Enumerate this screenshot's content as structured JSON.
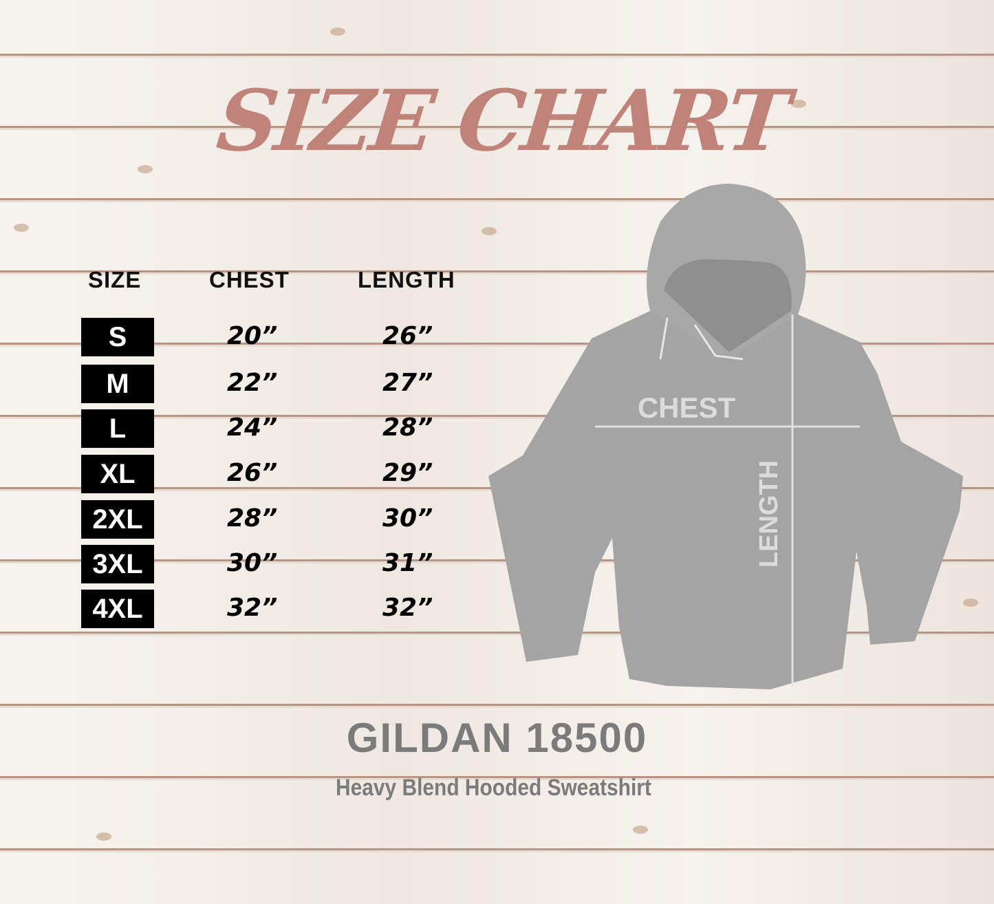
{
  "title": "SIZE CHART",
  "columns": [
    "SIZE",
    "CHEST",
    "LENGTH"
  ],
  "rows": [
    {
      "size": "S",
      "chest": "20”",
      "length": "26”"
    },
    {
      "size": "M",
      "chest": "22”",
      "length": "27”"
    },
    {
      "size": "L",
      "chest": "24”",
      "length": "28”"
    },
    {
      "size": "XL",
      "chest": "26”",
      "length": "29”"
    },
    {
      "size": "2XL",
      "chest": "28”",
      "length": "30”"
    },
    {
      "size": "3XL",
      "chest": "30”",
      "length": "31”"
    },
    {
      "size": "4XL",
      "chest": "32”",
      "length": "32”"
    }
  ],
  "diagram": {
    "chest_label": "CHEST",
    "length_label": "LENGTH",
    "garment_color": "#a4a4a4"
  },
  "brand": "GILDAN 18500",
  "product": "Heavy Blend Hooded Sweatshirt",
  "colors": {
    "title": "#c0837a",
    "badge": "#000000",
    "brand": "#7b7b7b"
  }
}
